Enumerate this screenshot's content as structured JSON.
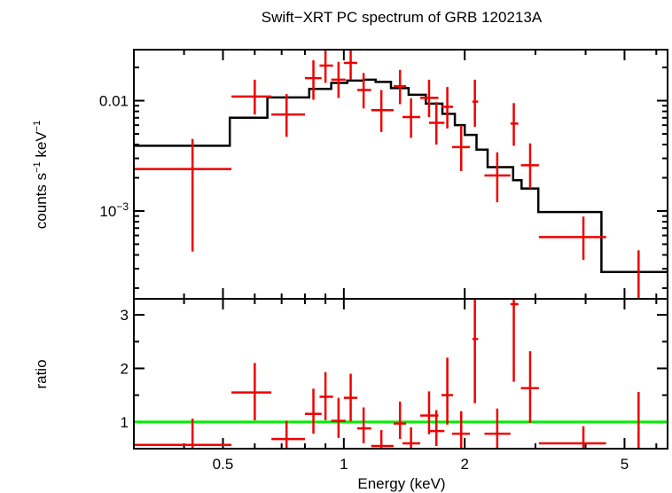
{
  "chart_data": {
    "type": "scatter",
    "title": "Swift−XRT PC spectrum of GRB 120213A",
    "xlabel": "Energy (keV)",
    "x_scale": "log",
    "xlim": [
      0.3,
      6.4
    ],
    "x_ticks": [
      {
        "value": 0.5,
        "label": "0.5"
      },
      {
        "value": 1,
        "label": "1"
      },
      {
        "value": 2,
        "label": "2"
      },
      {
        "value": 5,
        "label": "5"
      }
    ],
    "colors": {
      "data": "#ee0000",
      "model": "#000000",
      "unity": "#00ee00"
    },
    "panels": [
      {
        "name": "spectrum",
        "ylabel_parts": [
          "counts s",
          "−1",
          " keV",
          "−1"
        ],
        "y_scale": "log",
        "ylim": [
          0.00016,
          0.029
        ],
        "y_ticks": [
          {
            "value": 0.01,
            "label": "0.01",
            "sup": ""
          },
          {
            "value": 0.001,
            "label": "10",
            "sup": "−3"
          }
        ],
        "model_steps": [
          [
            0.3,
            0.0039
          ],
          [
            0.52,
            0.007
          ],
          [
            0.645,
            0.0107
          ],
          [
            0.82,
            0.0128
          ],
          [
            0.93,
            0.0145
          ],
          [
            1.02,
            0.0152
          ],
          [
            1.12,
            0.0155
          ],
          [
            1.2,
            0.0148
          ],
          [
            1.31,
            0.013
          ],
          [
            1.45,
            0.0113
          ],
          [
            1.6,
            0.0094
          ],
          [
            1.76,
            0.0076
          ],
          [
            1.89,
            0.006
          ],
          [
            2.0,
            0.0049
          ],
          [
            2.14,
            0.0036
          ],
          [
            2.28,
            0.0025
          ],
          [
            2.64,
            0.0019
          ],
          [
            2.77,
            0.0016
          ],
          [
            3.05,
            0.00098
          ],
          [
            4.38,
            0.00028
          ]
        ],
        "model_end": 6.4,
        "points": [
          {
            "x": 0.42,
            "xlo": 0.3,
            "xhi": 0.525,
            "y": 0.0024,
            "ylo": 0.00043,
            "yhi": 0.0045
          },
          {
            "x": 0.6,
            "xlo": 0.525,
            "xhi": 0.66,
            "y": 0.0109,
            "ylo": 0.0075,
            "yhi": 0.0155
          },
          {
            "x": 0.72,
            "xlo": 0.66,
            "xhi": 0.8,
            "y": 0.0075,
            "ylo": 0.0047,
            "yhi": 0.0115
          },
          {
            "x": 0.84,
            "xlo": 0.8,
            "xhi": 0.88,
            "y": 0.016,
            "ylo": 0.0102,
            "yhi": 0.0232
          },
          {
            "x": 0.9,
            "xlo": 0.87,
            "xhi": 0.94,
            "y": 0.0208,
            "ylo": 0.0145,
            "yhi": 0.0285
          },
          {
            "x": 0.97,
            "xlo": 0.93,
            "xhi": 1.01,
            "y": 0.0155,
            "ylo": 0.0106,
            "yhi": 0.0225
          },
          {
            "x": 1.04,
            "xlo": 1.0,
            "xhi": 1.08,
            "y": 0.022,
            "ylo": 0.0155,
            "yhi": 0.0295
          },
          {
            "x": 1.12,
            "xlo": 1.08,
            "xhi": 1.17,
            "y": 0.0125,
            "ylo": 0.0085,
            "yhi": 0.0178
          },
          {
            "x": 1.24,
            "xlo": 1.17,
            "xhi": 1.33,
            "y": 0.0082,
            "ylo": 0.0052,
            "yhi": 0.0125
          },
          {
            "x": 1.38,
            "xlo": 1.33,
            "xhi": 1.43,
            "y": 0.0135,
            "ylo": 0.0093,
            "yhi": 0.019
          },
          {
            "x": 1.47,
            "xlo": 1.4,
            "xhi": 1.55,
            "y": 0.0071,
            "ylo": 0.0046,
            "yhi": 0.0105
          },
          {
            "x": 1.63,
            "xlo": 1.55,
            "xhi": 1.72,
            "y": 0.0106,
            "ylo": 0.0071,
            "yhi": 0.0155
          },
          {
            "x": 1.7,
            "xlo": 1.63,
            "xhi": 1.78,
            "y": 0.0063,
            "ylo": 0.004,
            "yhi": 0.0097
          },
          {
            "x": 1.81,
            "xlo": 1.75,
            "xhi": 1.87,
            "y": 0.0088,
            "ylo": 0.0056,
            "yhi": 0.0133
          },
          {
            "x": 1.96,
            "xlo": 1.86,
            "xhi": 2.06,
            "y": 0.0038,
            "ylo": 0.0023,
            "yhi": 0.006
          },
          {
            "x": 2.12,
            "xlo": 2.09,
            "xhi": 2.16,
            "y": 0.0098,
            "ylo": 0.0058,
            "yhi": 0.0155
          },
          {
            "x": 2.41,
            "xlo": 2.24,
            "xhi": 2.6,
            "y": 0.0021,
            "ylo": 0.0012,
            "yhi": 0.0034
          },
          {
            "x": 2.65,
            "xlo": 2.6,
            "xhi": 2.72,
            "y": 0.0062,
            "ylo": 0.0039,
            "yhi": 0.0095
          },
          {
            "x": 2.91,
            "xlo": 2.76,
            "xhi": 3.06,
            "y": 0.0026,
            "ylo": 0.0016,
            "yhi": 0.0041
          },
          {
            "x": 3.95,
            "xlo": 3.06,
            "xhi": 4.5,
            "y": 0.00058,
            "ylo": 0.00036,
            "yhi": 0.00089
          },
          {
            "x": 5.42,
            "xlo": 5.42,
            "xhi": 5.42,
            "y": 0.00016,
            "ylo": 0.00016,
            "yhi": 0.00044
          }
        ]
      },
      {
        "name": "ratio",
        "ylabel": "ratio",
        "y_scale": "linear",
        "ylim": [
          0.5,
          3.3
        ],
        "y_ticks": [
          {
            "value": 1,
            "label": "1"
          },
          {
            "value": 2,
            "label": "2"
          },
          {
            "value": 3,
            "label": "3"
          }
        ],
        "reference_line": 1,
        "points": [
          {
            "x": 0.42,
            "xlo": 0.3,
            "xhi": 0.525,
            "y": 0.57,
            "ylo": 0.5,
            "yhi": 1.06
          },
          {
            "x": 0.6,
            "xlo": 0.525,
            "xhi": 0.66,
            "y": 1.55,
            "ylo": 1.03,
            "yhi": 2.1
          },
          {
            "x": 0.72,
            "xlo": 0.66,
            "xhi": 0.8,
            "y": 0.68,
            "ylo": 0.46,
            "yhi": 1.02
          },
          {
            "x": 0.84,
            "xlo": 0.8,
            "xhi": 0.88,
            "y": 1.15,
            "ylo": 0.78,
            "yhi": 1.62
          },
          {
            "x": 0.9,
            "xlo": 0.87,
            "xhi": 0.94,
            "y": 1.47,
            "ylo": 1.03,
            "yhi": 1.93
          },
          {
            "x": 0.97,
            "xlo": 0.93,
            "xhi": 1.01,
            "y": 1.02,
            "ylo": 0.7,
            "yhi": 1.45
          },
          {
            "x": 1.04,
            "xlo": 1.0,
            "xhi": 1.08,
            "y": 1.45,
            "ylo": 1.01,
            "yhi": 1.9
          },
          {
            "x": 1.12,
            "xlo": 1.08,
            "xhi": 1.17,
            "y": 0.88,
            "ylo": 0.6,
            "yhi": 1.27
          },
          {
            "x": 1.24,
            "xlo": 1.17,
            "xhi": 1.33,
            "y": 0.55,
            "ylo": 0.4,
            "yhi": 0.85
          },
          {
            "x": 1.38,
            "xlo": 1.33,
            "xhi": 1.43,
            "y": 0.97,
            "ylo": 0.68,
            "yhi": 1.38
          },
          {
            "x": 1.47,
            "xlo": 1.4,
            "xhi": 1.55,
            "y": 0.6,
            "ylo": 0.42,
            "yhi": 0.9
          },
          {
            "x": 1.63,
            "xlo": 1.55,
            "xhi": 1.72,
            "y": 1.12,
            "ylo": 0.77,
            "yhi": 1.57
          },
          {
            "x": 1.7,
            "xlo": 1.63,
            "xhi": 1.78,
            "y": 0.83,
            "ylo": 0.55,
            "yhi": 1.22
          },
          {
            "x": 1.81,
            "xlo": 1.75,
            "xhi": 1.87,
            "y": 1.5,
            "ylo": 0.95,
            "yhi": 2.2
          },
          {
            "x": 1.96,
            "xlo": 1.86,
            "xhi": 2.06,
            "y": 0.78,
            "ylo": 0.48,
            "yhi": 1.2
          },
          {
            "x": 2.12,
            "xlo": 2.09,
            "xhi": 2.16,
            "y": 2.55,
            "ylo": 1.35,
            "yhi": 3.3
          },
          {
            "x": 2.41,
            "xlo": 2.24,
            "xhi": 2.6,
            "y": 0.78,
            "ylo": 0.46,
            "yhi": 1.25
          },
          {
            "x": 2.65,
            "xlo": 2.6,
            "xhi": 2.72,
            "y": 3.2,
            "ylo": 1.75,
            "yhi": 3.3
          },
          {
            "x": 2.91,
            "xlo": 2.76,
            "xhi": 3.06,
            "y": 1.63,
            "ylo": 0.98,
            "yhi": 2.32
          },
          {
            "x": 3.95,
            "xlo": 3.06,
            "xhi": 4.5,
            "y": 0.6,
            "ylo": 0.38,
            "yhi": 0.92
          },
          {
            "x": 5.42,
            "xlo": 5.42,
            "xhi": 5.42,
            "y": 0.5,
            "ylo": 0.5,
            "yhi": 1.56
          }
        ]
      }
    ]
  }
}
